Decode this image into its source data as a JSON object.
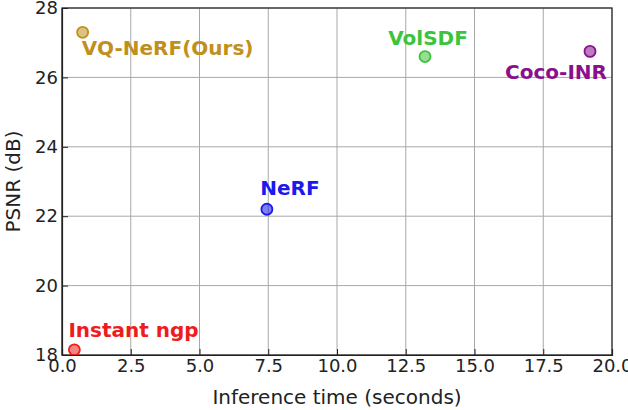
{
  "chart_data": {
    "type": "scatter",
    "x_label": "Inference time (seconds)",
    "y_label": "PSNR (dB)",
    "series": [
      {
        "name": "Instant ngp",
        "color": "#ee1c1c",
        "marker": "circle",
        "x": [
          0.45
        ],
        "values": [
          18.15
        ]
      },
      {
        "name": "NeRF",
        "color": "#1a1aee",
        "marker": "circle",
        "x": [
          7.45
        ],
        "values": [
          22.2
        ]
      },
      {
        "name": "VolSDF",
        "color": "#3cc43c",
        "marker": "circle",
        "x": [
          13.2
        ],
        "values": [
          26.6
        ]
      },
      {
        "name": "Coco-INR",
        "color": "#8b0f8b",
        "marker": "circle",
        "x": [
          19.2
        ],
        "values": [
          26.75
        ]
      },
      {
        "name": "VQ-NeRF(Ours)",
        "color": "#c0901c",
        "marker": "circle",
        "x": [
          0.75
        ],
        "values": [
          27.3
        ]
      }
    ],
    "xlim": [
      0,
      20
    ],
    "xticks": [
      {
        "value": 0,
        "label": "0.0"
      },
      2.5,
      {
        "value": 5,
        "label": "5.0"
      },
      7.5,
      {
        "value": 10,
        "label": "10.0"
      },
      12.5,
      {
        "value": 15,
        "label": "15.0"
      },
      17.5,
      {
        "value": 20,
        "label": "20.0"
      }
    ],
    "ylim": [
      18,
      28
    ],
    "yticks": [
      18,
      20,
      22,
      24,
      26,
      28
    ],
    "grid": true
  }
}
